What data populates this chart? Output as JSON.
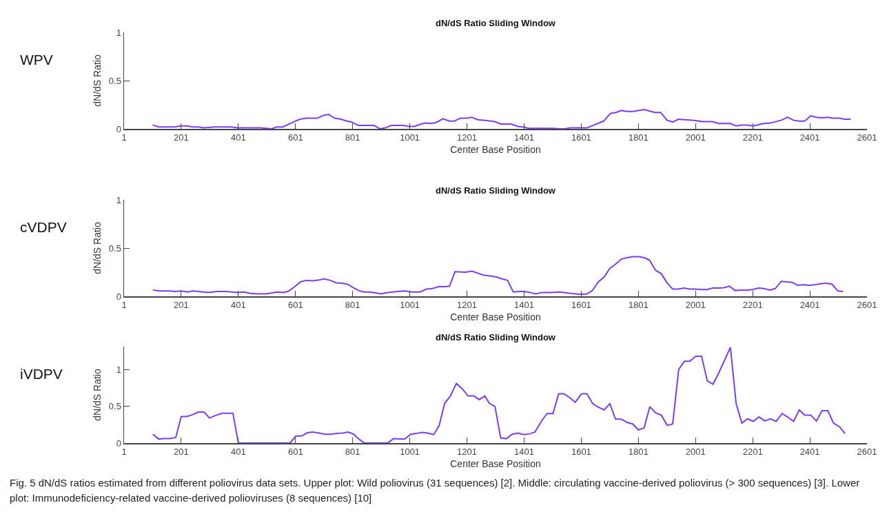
{
  "chart_data": [
    {
      "type": "line",
      "title": "dN/dS Ratio Sliding Window",
      "xlabel": "Center Base Position",
      "ylabel": "dN/dS Ratio",
      "annotations": [
        "WPV"
      ],
      "xlim": [
        1,
        2601
      ],
      "xticks": [
        1,
        201,
        401,
        601,
        801,
        1001,
        1201,
        1401,
        1601,
        1801,
        2001,
        2201,
        2401,
        2601
      ],
      "ylim": [
        0,
        1
      ],
      "yticks": [
        0,
        0.5,
        1
      ],
      "series": [
        {
          "color": "#7b3cf5",
          "x": [
            101,
            122,
            178,
            201,
            221,
            242,
            260,
            281,
            316,
            376,
            397,
            479,
            518,
            535,
            557,
            600,
            617,
            639,
            678,
            699,
            717,
            738,
            760,
            781,
            798,
            820,
            876,
            897,
            915,
            936,
            979,
            996,
            1018,
            1040,
            1057,
            1078,
            1096,
            1117,
            1139,
            1156,
            1178,
            1199,
            1218,
            1238,
            1272,
            1298,
            1320,
            1356,
            1379,
            1397,
            1419,
            1500,
            1527,
            1544,
            1562,
            1621,
            1679,
            1703,
            1722,
            1742,
            1762,
            1782,
            1822,
            1858,
            1879,
            1901,
            1921,
            1941,
            1966,
            2002,
            2024,
            2060,
            2082,
            2123,
            2143,
            2163,
            2181,
            2204,
            2240,
            2262,
            2302,
            2323,
            2343,
            2363,
            2383,
            2404,
            2424,
            2441,
            2464,
            2482,
            2504,
            2522,
            2544
          ],
          "values": [
            0.04,
            0.02,
            0.02,
            0.03,
            0.03,
            0.02,
            0.02,
            0.01,
            0.02,
            0.02,
            0.01,
            0.01,
            0,
            0.02,
            0.02,
            0.08,
            0.1,
            0.11,
            0.11,
            0.14,
            0.15,
            0.11,
            0.1,
            0.08,
            0.07,
            0.035,
            0.035,
            0,
            0.01,
            0.035,
            0.035,
            0.025,
            0.025,
            0.05,
            0.06,
            0.055,
            0.07,
            0.105,
            0.08,
            0.08,
            0.11,
            0.11,
            0.12,
            0.095,
            0.085,
            0.075,
            0.05,
            0.05,
            0.025,
            0.02,
            0.005,
            0.005,
            0,
            0,
            0.01,
            0.01,
            0.08,
            0.16,
            0.17,
            0.19,
            0.18,
            0.18,
            0.2,
            0.17,
            0.17,
            0.09,
            0.07,
            0.1,
            0.095,
            0.085,
            0.075,
            0.075,
            0.055,
            0.055,
            0.03,
            0.04,
            0.04,
            0.03,
            0.055,
            0.06,
            0.09,
            0.12,
            0.09,
            0.08,
            0.08,
            0.135,
            0.12,
            0.115,
            0.12,
            0.11,
            0.11,
            0.1,
            0.1
          ]
        }
      ]
    },
    {
      "type": "line",
      "title": "dN/dS Ratio Sliding Window",
      "xlabel": "Center Base Position",
      "ylabel": "dN/dS Ratio",
      "annotations": [
        "cVDPV"
      ],
      "xlim": [
        1,
        2601
      ],
      "xticks": [
        1,
        201,
        401,
        601,
        801,
        1001,
        1201,
        1401,
        1601,
        1801,
        2001,
        2201,
        2401,
        2601
      ],
      "ylim": [
        0,
        1
      ],
      "yticks": [
        0,
        0.5,
        1
      ],
      "series": [
        {
          "color": "#7b3cf5",
          "x": [
            102,
            122,
            158,
            180,
            201,
            223,
            242,
            296,
            326,
            356,
            399,
            421,
            442,
            468,
            498,
            520,
            537,
            559,
            578,
            598,
            619,
            639,
            662,
            684,
            701,
            723,
            744,
            763,
            783,
            803,
            822,
            839,
            861,
            882,
            899,
            925,
            959,
            985,
            1007,
            1037,
            1059,
            1080,
            1102,
            1123,
            1140,
            1159,
            1196,
            1218,
            1239,
            1259,
            1283,
            1305,
            1323,
            1343,
            1363,
            1385,
            1401,
            1421,
            1443,
            1463,
            1496,
            1523,
            1541,
            1563,
            1603,
            1621,
            1640,
            1661,
            1681,
            1701,
            1720,
            1741,
            1761,
            1782,
            1803,
            1822,
            1840,
            1861,
            1881,
            1901,
            1921,
            1941,
            1961,
            1981,
            2001,
            2021,
            2041,
            2061,
            2083,
            2101,
            2120,
            2139,
            2160,
            2181,
            2201,
            2221,
            2240,
            2261,
            2280,
            2301,
            2320,
            2339,
            2358,
            2378,
            2398,
            2419,
            2439,
            2458,
            2479,
            2499,
            2517
          ],
          "values": [
            0.067,
            0.055,
            0.055,
            0.05,
            0.055,
            0.045,
            0.055,
            0.04,
            0.05,
            0.05,
            0.04,
            0.045,
            0.03,
            0.025,
            0.025,
            0.035,
            0.045,
            0.04,
            0.055,
            0.1,
            0.15,
            0.165,
            0.16,
            0.17,
            0.18,
            0.165,
            0.14,
            0.135,
            0.125,
            0.09,
            0.06,
            0.045,
            0.045,
            0.035,
            0.025,
            0.04,
            0.05,
            0.055,
            0.045,
            0.045,
            0.075,
            0.08,
            0.1,
            0.1,
            0.105,
            0.255,
            0.25,
            0.26,
            0.24,
            0.22,
            0.21,
            0.2,
            0.18,
            0.165,
            0.045,
            0.05,
            0.05,
            0.04,
            0.025,
            0.04,
            0.04,
            0.045,
            0.04,
            0.03,
            0.02,
            0.025,
            0.06,
            0.15,
            0.2,
            0.29,
            0.33,
            0.385,
            0.4,
            0.41,
            0.41,
            0.4,
            0.375,
            0.27,
            0.235,
            0.14,
            0.075,
            0.075,
            0.085,
            0.075,
            0.075,
            0.07,
            0.07,
            0.085,
            0.085,
            0.09,
            0.105,
            0.06,
            0.065,
            0.065,
            0.07,
            0.085,
            0.08,
            0.065,
            0.08,
            0.155,
            0.15,
            0.145,
            0.115,
            0.12,
            0.115,
            0.12,
            0.13,
            0.135,
            0.125,
            0.055,
            0.05
          ]
        }
      ]
    },
    {
      "type": "line",
      "title": "dN/dS Ratio Sliding Window",
      "xlabel": "Center Base Position",
      "ylabel": "dN/dS Ratio",
      "annotations": [
        "iVDPV",
        "Fig. 5 dN/dS ratios estimated from different poliovirus data sets. Upper plot: Wild poliovirus (31 sequences) [2]. Middle: circulating vaccine-derived poliovirus (> 300 sequences) [3]. Lower plot: Immunodeficiency-related vaccine-derived polioviruses (8 sequences) [10]"
      ],
      "xlim": [
        1,
        2601
      ],
      "xticks": [
        1,
        201,
        401,
        601,
        801,
        1001,
        1201,
        1401,
        1601,
        1801,
        2001,
        2201,
        2401,
        2601
      ],
      "ylim": [
        0,
        1.31
      ],
      "yticks": [
        0,
        0.5,
        1
      ],
      "series": [
        {
          "color": "#7b3cf5",
          "x": [
            102,
            122,
            141,
            162,
            182,
            201,
            221,
            240,
            261,
            281,
            300,
            322,
            343,
            382,
            401,
            582,
            602,
            622,
            643,
            662,
            684,
            705,
            725,
            744,
            766,
            785,
            805,
            824,
            843,
            923,
            944,
            964,
            984,
            1004,
            1024,
            1044,
            1063,
            1085,
            1104,
            1123,
            1143,
            1164,
            1184,
            1205,
            1225,
            1244,
            1264,
            1279,
            1299,
            1319,
            1339,
            1359,
            1380,
            1401,
            1420,
            1439,
            1462,
            1481,
            1502,
            1522,
            1540,
            1560,
            1580,
            1602,
            1621,
            1641,
            1660,
            1681,
            1701,
            1721,
            1741,
            1761,
            1781,
            1801,
            1821,
            1841,
            1861,
            1881,
            1902,
            1921,
            1942,
            1962,
            1981,
            2002,
            2022,
            2042,
            2062,
            2082,
            2123,
            2143,
            2163,
            2183,
            2203,
            2223,
            2243,
            2263,
            2283,
            2304,
            2323,
            2344,
            2364,
            2383,
            2404,
            2424,
            2444,
            2464,
            2484,
            2505,
            2524
          ],
          "values": [
            0.12,
            0.055,
            0.06,
            0.06,
            0.075,
            0.36,
            0.36,
            0.385,
            0.42,
            0.42,
            0.34,
            0.375,
            0.405,
            0.405,
            0,
            0,
            0.095,
            0.095,
            0.14,
            0.15,
            0.135,
            0.12,
            0.12,
            0.13,
            0.135,
            0.15,
            0.12,
            0.05,
            0,
            0,
            0.06,
            0.055,
            0.055,
            0.12,
            0.13,
            0.145,
            0.135,
            0.115,
            0.24,
            0.54,
            0.64,
            0.81,
            0.74,
            0.64,
            0.64,
            0.59,
            0.64,
            0.54,
            0.5,
            0.07,
            0.06,
            0.12,
            0.135,
            0.115,
            0.125,
            0.15,
            0.3,
            0.4,
            0.4,
            0.67,
            0.67,
            0.62,
            0.555,
            0.67,
            0.67,
            0.535,
            0.49,
            0.45,
            0.535,
            0.325,
            0.325,
            0.28,
            0.26,
            0.18,
            0.205,
            0.495,
            0.41,
            0.38,
            0.24,
            0.26,
            1.0,
            1.11,
            1.11,
            1.18,
            1.18,
            0.845,
            0.8,
            0.95,
            1.3,
            0.535,
            0.27,
            0.33,
            0.295,
            0.355,
            0.3,
            0.33,
            0.295,
            0.4,
            0.355,
            0.295,
            0.45,
            0.38,
            0.38,
            0.3,
            0.44,
            0.44,
            0.27,
            0.22,
            0.13
          ]
        }
      ]
    }
  ]
}
